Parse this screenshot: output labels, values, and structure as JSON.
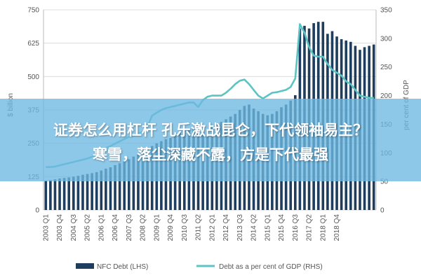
{
  "overlay": {
    "line1": "证券怎么用杠杆 孔乐激战昆仑，下代领袖易主？",
    "line2": "寒雪，落尘深藏不露，方是下代最强"
  },
  "chart_data": {
    "type": "bar",
    "title": "",
    "ylabel_left": "$ billion",
    "ylabel_right": "per cent of GDP",
    "ylim_left": [
      0,
      750
    ],
    "ylim_right": [
      0,
      350
    ],
    "yticks_left": [
      0,
      125,
      250,
      375,
      500,
      625,
      750
    ],
    "yticks_right": [
      0,
      50,
      100,
      150,
      200,
      250,
      300,
      350
    ],
    "xtick_labels": [
      "2003 Q1",
      "2003 Q4",
      "2004 Q3",
      "2005 Q2",
      "2006 Q1",
      "2006 Q4",
      "2007 Q3",
      "2008 Q2",
      "2009 Q1",
      "2009 Q4",
      "2010 Q3",
      "2011 Q2",
      "2012 Q1",
      "2012 Q4",
      "2013 Q3",
      "2014 Q2",
      "2015 Q1",
      "2015 Q4",
      "2016 Q3",
      "2017 Q2",
      "2018 Q1",
      "2018 Q4"
    ],
    "grid": true,
    "legend_position": "bottom",
    "series": [
      {
        "name": "NFC Debt (LHS)",
        "type": "bar",
        "axis": "left",
        "color": "#1f3d5c",
        "values": [
          110,
          112,
          115,
          118,
          120,
          122,
          125,
          128,
          132,
          135,
          138,
          142,
          148,
          155,
          160,
          168,
          175,
          182,
          190,
          200,
          210,
          220,
          230,
          240,
          250,
          258,
          265,
          270,
          280,
          290,
          300,
          305,
          308,
          300,
          295,
          300,
          310,
          320,
          330,
          340,
          350,
          360,
          375,
          390,
          395,
          380,
          370,
          360,
          355,
          360,
          370,
          385,
          395,
          410,
          430,
          680,
          690,
          680,
          700,
          705,
          705,
          660,
          670,
          650,
          640,
          635,
          630,
          615,
          600,
          610,
          615,
          620
        ]
      },
      {
        "name": "Debt as a per cent of GDP (RHS)",
        "type": "line",
        "axis": "right",
        "color": "#5cc4c4",
        "values": [
          75,
          75,
          76,
          78,
          80,
          82,
          84,
          86,
          88,
          90,
          93,
          97,
          102,
          108,
          112,
          116,
          120,
          124,
          128,
          130,
          133,
          137,
          145,
          165,
          170,
          175,
          178,
          180,
          182,
          184,
          186,
          188,
          188,
          180,
          192,
          198,
          200,
          200,
          200,
          205,
          212,
          220,
          226,
          228,
          220,
          210,
          200,
          195,
          200,
          205,
          206,
          208,
          210,
          215,
          230,
          325,
          310,
          285,
          270,
          268,
          268,
          255,
          245,
          240,
          235,
          225,
          220,
          210,
          200,
          198,
          196,
          196
        ]
      }
    ]
  }
}
